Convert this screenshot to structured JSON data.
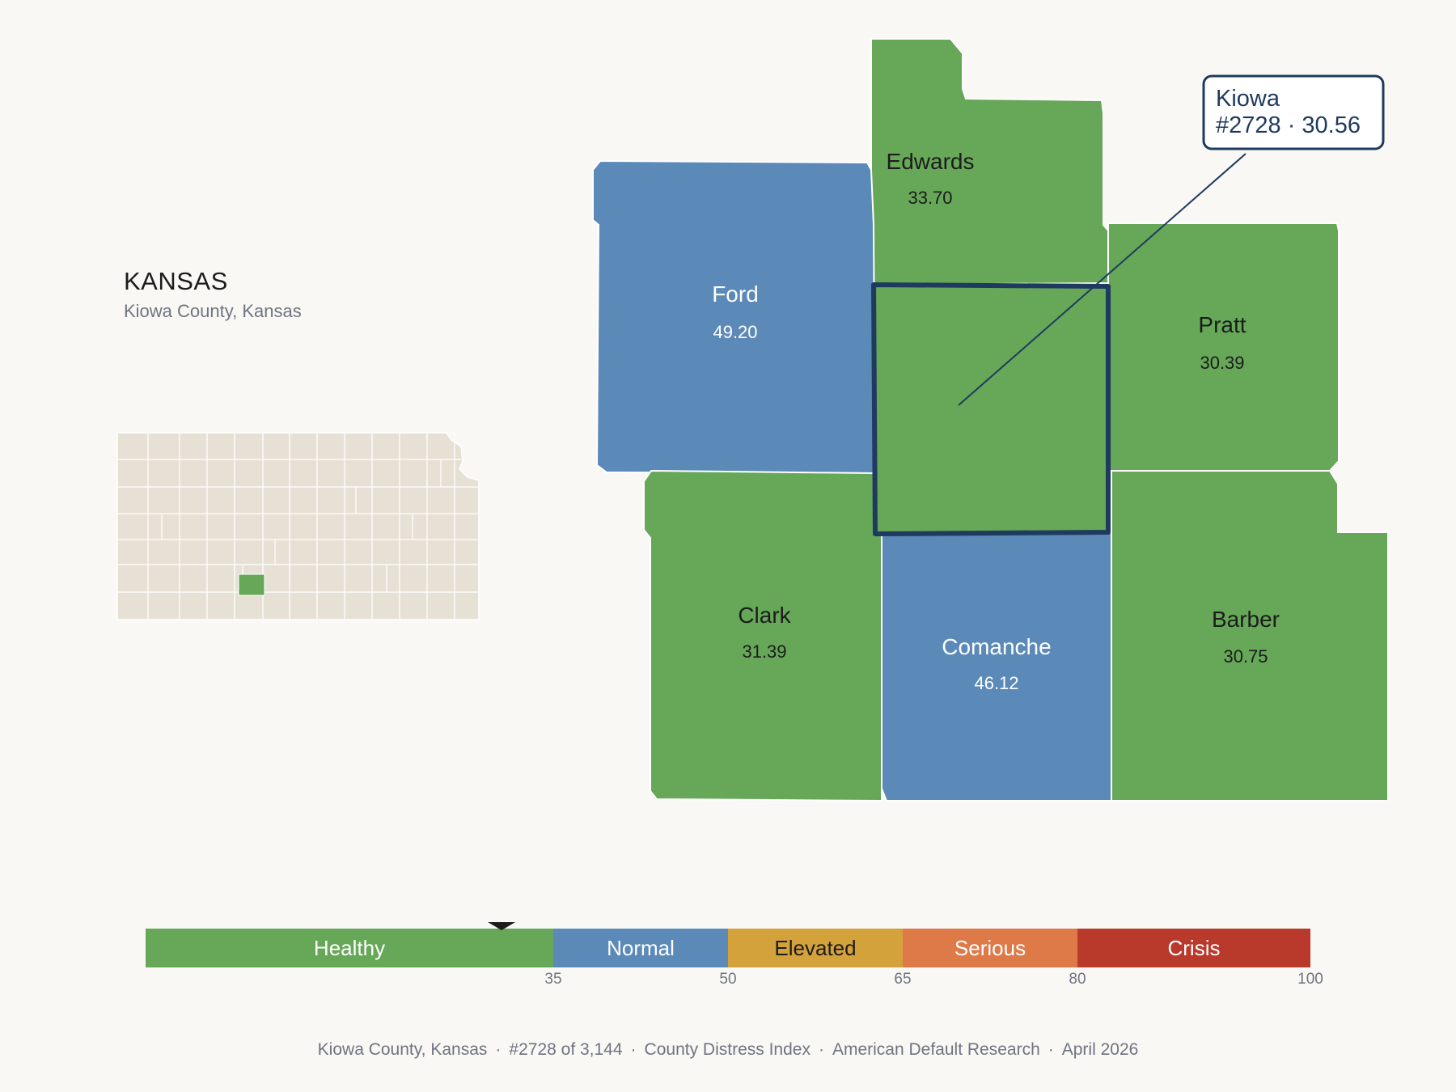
{
  "header": {
    "state": "KANSAS",
    "subtitle": "Kiowa County, Kansas"
  },
  "colors": {
    "healthy": "#66a758",
    "normal": "#5b89b8",
    "elevated": "#d4a23a",
    "serious": "#de7948",
    "crisis": "#b93a2b",
    "inset_base": "#e7e1d5",
    "highlight_outline": "#1f3a5f",
    "background": "#f9f8f5"
  },
  "map": {
    "focus_county": "Kiowa",
    "counties": [
      {
        "name": "Edwards",
        "value": "33.70",
        "tier": "Healthy"
      },
      {
        "name": "Ford",
        "value": "49.20",
        "tier": "Normal"
      },
      {
        "name": "Pratt",
        "value": "30.39",
        "tier": "Healthy"
      },
      {
        "name": "Kiowa",
        "value": "30.56",
        "tier": "Healthy"
      },
      {
        "name": "Clark",
        "value": "31.39",
        "tier": "Healthy"
      },
      {
        "name": "Comanche",
        "value": "46.12",
        "tier": "Normal"
      },
      {
        "name": "Barber",
        "value": "30.75",
        "tier": "Healthy"
      }
    ],
    "callout": {
      "line1": "Kiowa",
      "line2": "#2728 · 30.56"
    }
  },
  "legend": {
    "marker_value": 30.56,
    "segments": [
      {
        "label": "Healthy",
        "from": 0,
        "to": 35,
        "color": "#66a758",
        "text_color": "#ffffff"
      },
      {
        "label": "Normal",
        "from": 35,
        "to": 50,
        "color": "#5b89b8",
        "text_color": "#ffffff"
      },
      {
        "label": "Elevated",
        "from": 50,
        "to": 65,
        "color": "#d4a23a",
        "text_color": "#1c1c1c"
      },
      {
        "label": "Serious",
        "from": 65,
        "to": 80,
        "color": "#de7948",
        "text_color": "#ffffff"
      },
      {
        "label": "Crisis",
        "from": 80,
        "to": 100,
        "color": "#b93a2b",
        "text_color": "#ffffff"
      }
    ],
    "ticks": [
      "35",
      "50",
      "65",
      "80",
      "100"
    ]
  },
  "footer": {
    "county": "Kiowa County, Kansas",
    "rank": "#2728 of 3,144",
    "index": "County Distress Index",
    "publisher": "American Default Research",
    "date": "April 2026"
  }
}
